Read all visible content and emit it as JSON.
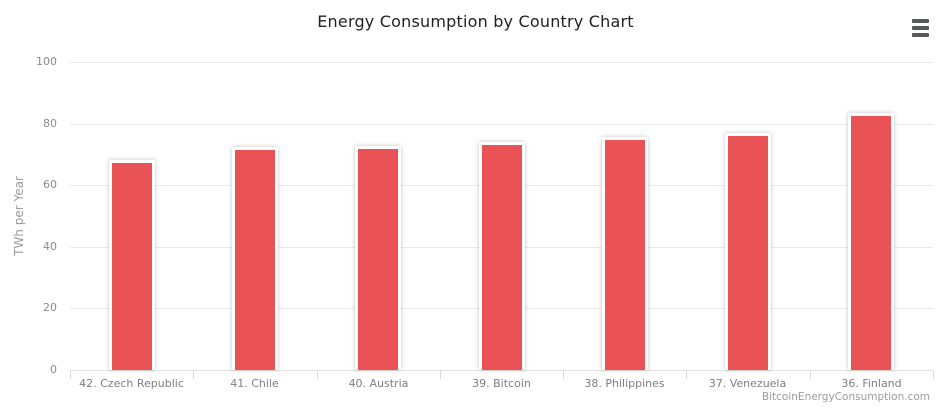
{
  "colors": {
    "bar": "#ea5355",
    "bar_outline": "#ffffff",
    "grid": "#e9e9e9",
    "axis_line": "#e2e2e2",
    "tick": "#d9d9d9",
    "axis_labels": "#8a8a8a",
    "title": "#212121",
    "credits": "#9c9c9c",
    "menu_icon": "#58595b",
    "background": "#ffffff"
  },
  "export_menu": {
    "icon": "hamburger-icon"
  },
  "chart_data": {
    "type": "bar",
    "title": "Energy Consumption by Country Chart",
    "categories": [
      "42. Czech Republic",
      "41. Chile",
      "40. Austria",
      "39. Bitcoin",
      "38. Philippines",
      "37. Venezuela",
      "36. Finland"
    ],
    "values": [
      67.2,
      71.3,
      71.8,
      73.1,
      74.6,
      75.9,
      82.5
    ],
    "xlabel": "",
    "ylabel": "TWh per Year",
    "ylim": [
      0,
      100
    ],
    "yticks": [
      0,
      20,
      40,
      60,
      80,
      100
    ],
    "grid": true,
    "legend": false,
    "credits": "BitcoinEnergyConsumption.com"
  }
}
